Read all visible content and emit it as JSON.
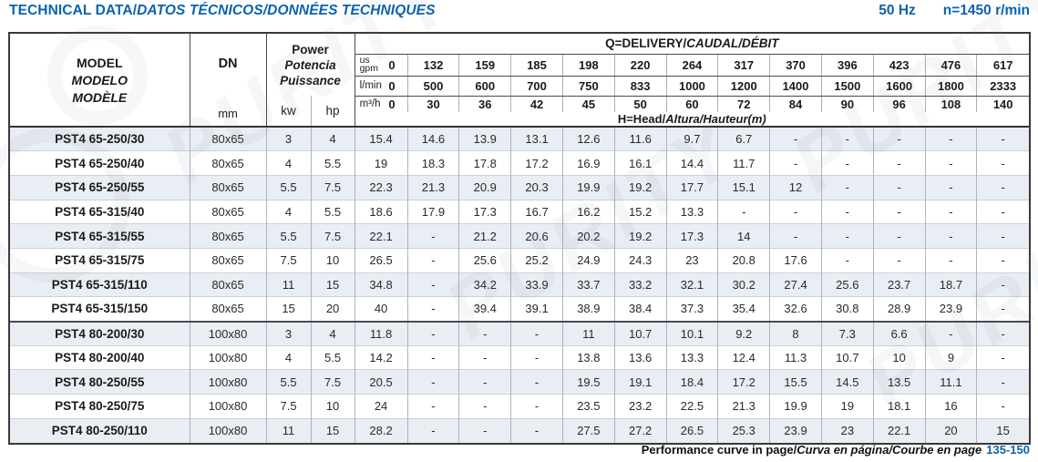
{
  "page": {
    "title_plain": "TECHNICAL DATA/",
    "title_italic": "DATOS TÉCNICOS/DONNÉES TECHNIQUES",
    "frequency": "50 Hz",
    "speed": "n=1450 r/min",
    "accent_color": "#0b63ab",
    "watermark_text": "PURITY"
  },
  "table": {
    "model_header_lines": [
      "MODEL",
      "MODELO",
      "MODÈLE"
    ],
    "dn_label": "DN",
    "dn_unit": "mm",
    "power_lines": [
      "Power",
      "Potencia",
      "Puissance"
    ],
    "kw_label": "kw",
    "hp_label": "hp",
    "delivery_plain": "Q=DELIVERY/",
    "delivery_italic": "CAUDAL/DÉBIT",
    "head_plain": "H=Head/",
    "head_italic": "Altura/Hauteur",
    "head_unit": "(m)",
    "flow": {
      "gpm": {
        "label_lines": [
          "us",
          "gpm"
        ],
        "values": [
          "0",
          "132",
          "159",
          "185",
          "198",
          "220",
          "264",
          "317",
          "370",
          "396",
          "423",
          "476",
          "617"
        ]
      },
      "lmin": {
        "label": "l/min",
        "values": [
          "0",
          "500",
          "600",
          "700",
          "750",
          "833",
          "1000",
          "1200",
          "1400",
          "1500",
          "1600",
          "1800",
          "2333"
        ]
      },
      "m3h": {
        "label": "m³/h",
        "values": [
          "0",
          "30",
          "36",
          "42",
          "45",
          "50",
          "60",
          "72",
          "84",
          "90",
          "96",
          "108",
          "140"
        ]
      }
    },
    "rows": [
      {
        "model": "PST4 65-250/30",
        "dn": "80x65",
        "kw": "3",
        "hp": "4",
        "head": [
          "15.4",
          "14.6",
          "13.9",
          "13.1",
          "12.6",
          "11.6",
          "9.7",
          "6.7",
          "-",
          "-",
          "-",
          "-",
          "-"
        ]
      },
      {
        "model": "PST4 65-250/40",
        "dn": "80x65",
        "kw": "4",
        "hp": "5.5",
        "head": [
          "19",
          "18.3",
          "17.8",
          "17.2",
          "16.9",
          "16.1",
          "14.4",
          "11.7",
          "-",
          "-",
          "-",
          "-",
          "-"
        ]
      },
      {
        "model": "PST4 65-250/55",
        "dn": "80x65",
        "kw": "5.5",
        "hp": "7.5",
        "head": [
          "22.3",
          "21.3",
          "20.9",
          "20.3",
          "19.9",
          "19.2",
          "17.7",
          "15.1",
          "12",
          "-",
          "-",
          "-",
          "-"
        ]
      },
      {
        "model": "PST4 65-315/40",
        "dn": "80x65",
        "kw": "4",
        "hp": "5.5",
        "head": [
          "18.6",
          "17.9",
          "17.3",
          "16.7",
          "16.2",
          "15.2",
          "13.3",
          "-",
          "-",
          "-",
          "-",
          "-",
          "-"
        ]
      },
      {
        "model": "PST4 65-315/55",
        "dn": "80x65",
        "kw": "5.5",
        "hp": "7.5",
        "head": [
          "22.1",
          "-",
          "21.2",
          "20.6",
          "20.2",
          "19.2",
          "17.3",
          "14",
          "-",
          "-",
          "-",
          "-",
          "-"
        ]
      },
      {
        "model": "PST4 65-315/75",
        "dn": "80x65",
        "kw": "7.5",
        "hp": "10",
        "head": [
          "26.5",
          "-",
          "25.6",
          "25.2",
          "24.9",
          "24.3",
          "23",
          "20.8",
          "17.6",
          "-",
          "-",
          "-",
          "-"
        ]
      },
      {
        "model": "PST4 65-315/110",
        "dn": "80x65",
        "kw": "11",
        "hp": "15",
        "head": [
          "34.8",
          "-",
          "34.2",
          "33.9",
          "33.7",
          "33.2",
          "32.1",
          "30.2",
          "27.4",
          "25.6",
          "23.7",
          "18.7",
          "-"
        ]
      },
      {
        "model": "PST4 65-315/150",
        "dn": "80x65",
        "kw": "15",
        "hp": "20",
        "head": [
          "40",
          "-",
          "39.4",
          "39.1",
          "38.9",
          "38.4",
          "37.3",
          "35.4",
          "32.6",
          "30.8",
          "28.9",
          "23.9",
          "-"
        ]
      },
      {
        "model": "PST4 80-200/30",
        "dn": "100x80",
        "kw": "3",
        "hp": "4",
        "group_start": true,
        "head": [
          "11.8",
          "-",
          "-",
          "-",
          "11",
          "10.7",
          "10.1",
          "9.2",
          "8",
          "7.3",
          "6.6",
          "-",
          "-"
        ]
      },
      {
        "model": "PST4 80-200/40",
        "dn": "100x80",
        "kw": "4",
        "hp": "5.5",
        "head": [
          "14.2",
          "-",
          "-",
          "-",
          "13.8",
          "13.6",
          "13.3",
          "12.4",
          "11.3",
          "10.7",
          "10",
          "9",
          "-"
        ]
      },
      {
        "model": "PST4 80-250/55",
        "dn": "100x80",
        "kw": "5.5",
        "hp": "7.5",
        "head": [
          "20.5",
          "-",
          "-",
          "-",
          "19.5",
          "19.1",
          "18.4",
          "17.2",
          "15.5",
          "14.5",
          "13.5",
          "11.1",
          "-"
        ]
      },
      {
        "model": "PST4 80-250/75",
        "dn": "100x80",
        "kw": "7.5",
        "hp": "10",
        "head": [
          "24",
          "-",
          "-",
          "-",
          "23.5",
          "23.2",
          "22.5",
          "21.3",
          "19.9",
          "19",
          "18.1",
          "16",
          "-"
        ]
      },
      {
        "model": "PST4 80-250/110",
        "dn": "100x80",
        "kw": "11",
        "hp": "15",
        "head": [
          "28.2",
          "-",
          "-",
          "-",
          "27.5",
          "27.2",
          "26.5",
          "25.3",
          "23.9",
          "23",
          "22.1",
          "20",
          "15"
        ]
      }
    ]
  },
  "footer": {
    "text_plain": "Performance curve in page/",
    "text_italic": "Curva en página/Courbe en page",
    "pages": "135-150"
  }
}
